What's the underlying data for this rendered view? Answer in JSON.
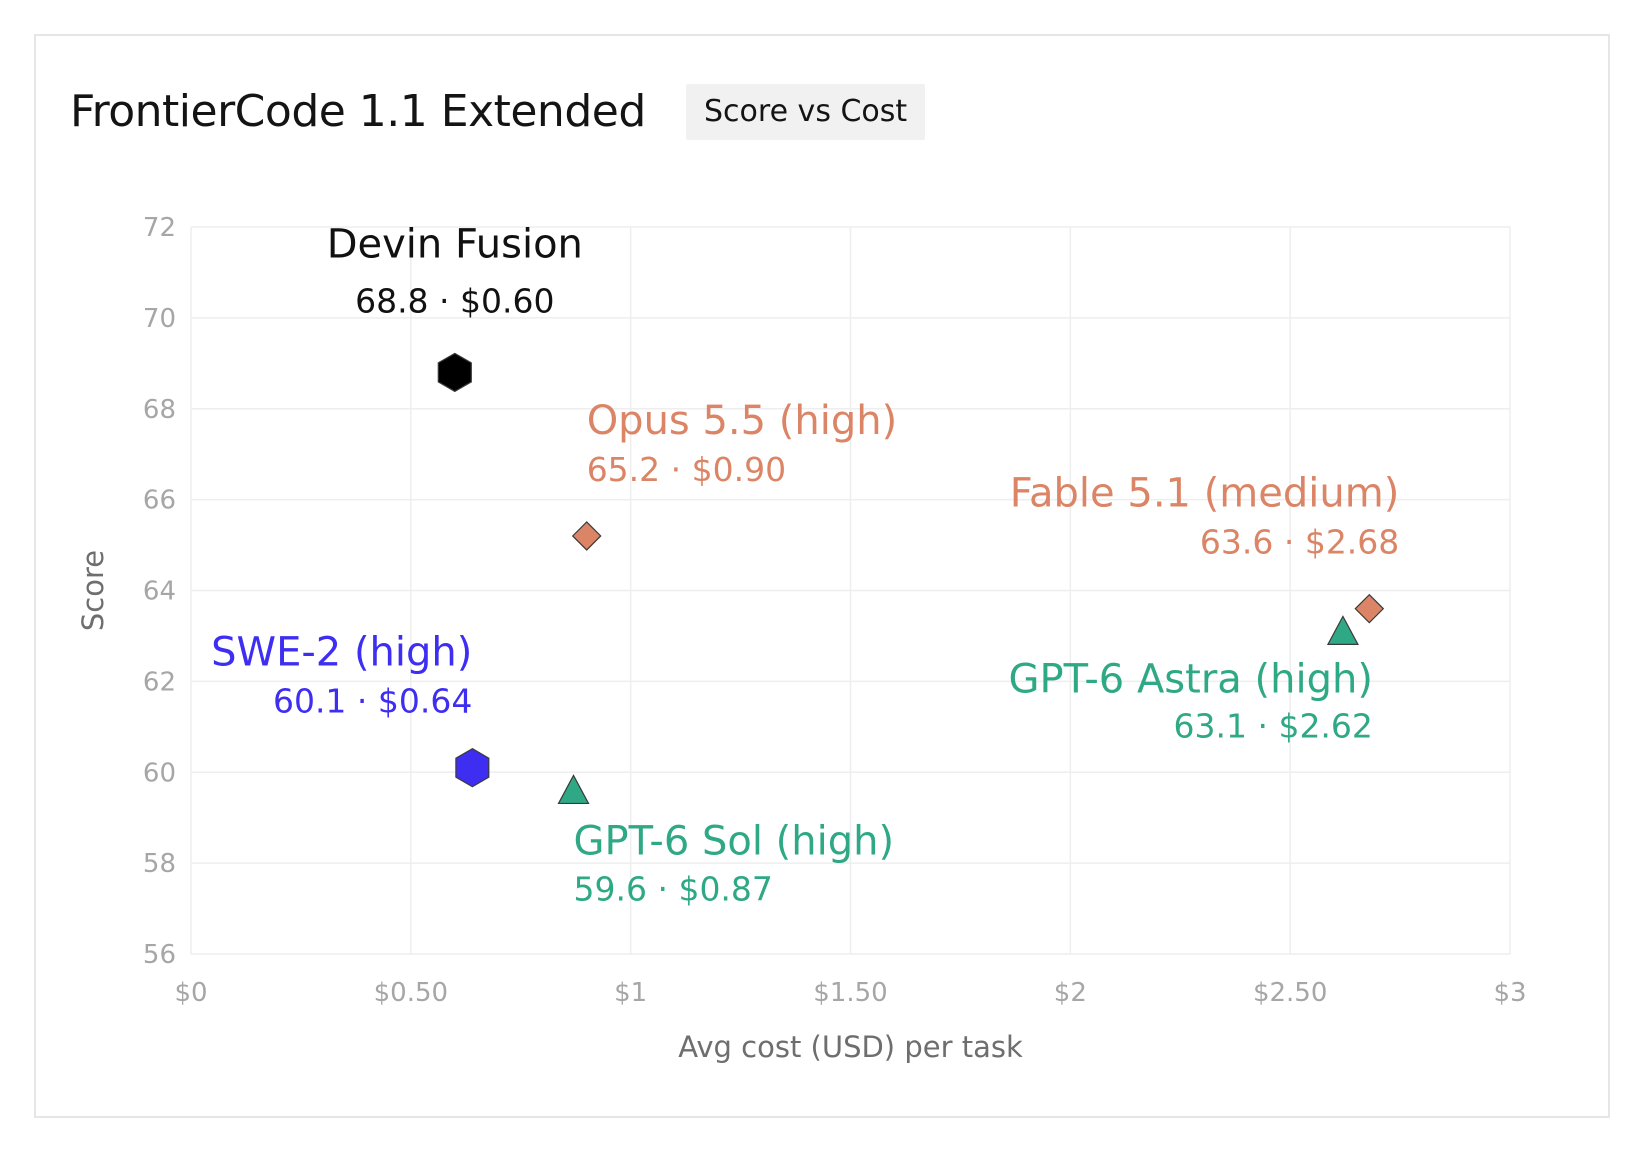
{
  "header": {
    "title": "FrontierCode 1.1 Extended",
    "tag": "Score vs Cost"
  },
  "chart_data": {
    "type": "scatter",
    "title": "FrontierCode 1.1 Extended",
    "subtitle": "Score vs Cost",
    "xlabel": "Avg cost (USD) per task",
    "ylabel": "Score",
    "xlim": [
      0,
      3
    ],
    "ylim": [
      56,
      72
    ],
    "x_ticks": [
      0,
      0.5,
      1,
      1.5,
      2,
      2.5,
      3
    ],
    "x_tick_labels": [
      "$0",
      "$0.50",
      "$1",
      "$1.50",
      "$2",
      "$2.50",
      "$3"
    ],
    "y_ticks": [
      56,
      58,
      60,
      62,
      64,
      66,
      68,
      70,
      72
    ],
    "y_tick_labels": [
      "56",
      "58",
      "60",
      "62",
      "64",
      "66",
      "68",
      "70",
      "72"
    ],
    "grid": true,
    "points": [
      {
        "name": "Devin Fusion",
        "label": "68.8 · $0.60",
        "x": 0.6,
        "y": 68.8,
        "marker": "hexagon",
        "color": "#000000"
      },
      {
        "name": "Opus 5.5 (high)",
        "label": "65.2 · $0.90",
        "x": 0.9,
        "y": 65.2,
        "marker": "diamond",
        "color": "#db8566"
      },
      {
        "name": "Fable 5.1 (medium)",
        "label": "63.6 · $2.68",
        "x": 2.68,
        "y": 63.6,
        "marker": "diamond",
        "color": "#db8566"
      },
      {
        "name": "GPT-6 Astra (high)",
        "label": "63.1 · $2.62",
        "x": 2.62,
        "y": 63.1,
        "marker": "triangle",
        "color": "#2fa985"
      },
      {
        "name": "SWE-2 (high)",
        "label": "60.1 · $0.64",
        "x": 0.64,
        "y": 60.1,
        "marker": "hexagon",
        "color": "#3d2ef2"
      },
      {
        "name": "GPT-6 Sol (high)",
        "label": "59.6 · $0.87",
        "x": 0.87,
        "y": 59.6,
        "marker": "triangle",
        "color": "#2fa985"
      }
    ]
  }
}
